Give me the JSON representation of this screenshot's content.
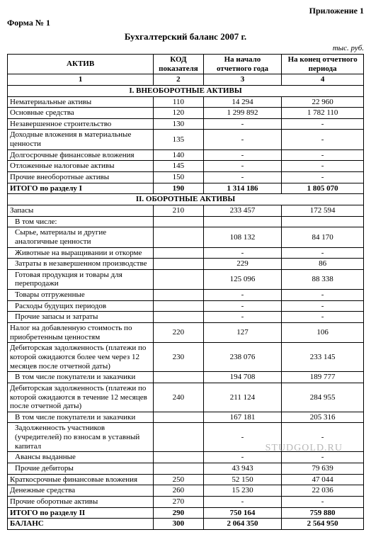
{
  "meta": {
    "appendix": "Приложение 1",
    "form": "Форма № 1",
    "title": "Бухгалтерский баланс 2007 г.",
    "units": "тыс. руб.",
    "watermark": "STUDGOLD.RU"
  },
  "table": {
    "headers": {
      "c1": "АКТИВ",
      "c2": "КОД показателя",
      "c3": "На начало отчетного года",
      "c4": "На конец отчетного периода"
    },
    "colnums": {
      "c1": "1",
      "c2": "2",
      "c3": "3",
      "c4": "4"
    },
    "section1": "I. ВНЕОБОРОТНЫЕ АКТИВЫ",
    "section2": "II. ОБОРОТНЫЕ АКТИВЫ",
    "rows1": [
      {
        "name": "Нематериальные активы",
        "code": "110",
        "v1": "14 294",
        "v2": "22 960"
      },
      {
        "name": "Основные средства",
        "code": "120",
        "v1": "1 299 892",
        "v2": "1 782 110"
      },
      {
        "name": "Незавершенное строительство",
        "code": "130",
        "v1": "-",
        "v2": "-"
      },
      {
        "name": "Доходные вложения в материальные ценности",
        "code": "135",
        "v1": "-",
        "v2": "-"
      },
      {
        "name": "Долгосрочные финансовые вложения",
        "code": "140",
        "v1": "-",
        "v2": "-"
      },
      {
        "name": "Отложенные налоговые активы",
        "code": "145",
        "v1": "-",
        "v2": "-"
      },
      {
        "name": "Прочие внеоборотные активы",
        "code": "150",
        "v1": "-",
        "v2": "-"
      },
      {
        "name": "ИТОГО по разделу I",
        "code": "190",
        "v1": "1 314 186",
        "v2": "1 805 070",
        "bold": true
      }
    ],
    "rows2": [
      {
        "name": "Запасы",
        "code": "210",
        "v1": "233 457",
        "v2": "172 594"
      },
      {
        "name": "В том числе:",
        "code": "",
        "v1": "",
        "v2": "",
        "indent": true
      },
      {
        "name": "Сырье, материалы и другие аналогичные ценности",
        "code": "",
        "v1": "108 132",
        "v2": "84 170",
        "indent": true
      },
      {
        "name": "Животные на выращивании и откорме",
        "code": "",
        "v1": "-",
        "v2": "-",
        "indent": true
      },
      {
        "name": "Затраты в незавершенном производстве",
        "code": "",
        "v1": "229",
        "v2": "86",
        "indent": true
      },
      {
        "name": "Готовая продукция и товары для перепродажи",
        "code": "",
        "v1": "125 096",
        "v2": "88 338",
        "indent": true
      },
      {
        "name": "Товары отгруженные",
        "code": "",
        "v1": "-",
        "v2": "-",
        "indent": true
      },
      {
        "name": "Расходы будущих периодов",
        "code": "",
        "v1": "-",
        "v2": "-",
        "indent": true
      },
      {
        "name": "Прочие запасы и затраты",
        "code": "",
        "v1": "-",
        "v2": "-",
        "indent": true
      },
      {
        "name": "Налог на добавленную стоимость по приобретенным ценностям",
        "code": "220",
        "v1": "127",
        "v2": "106"
      },
      {
        "name": "Дебиторская задолженность (платежи по которой ожидаются более чем через 12 месяцев после отчетной даты)",
        "code": "230",
        "v1": "238 076",
        "v2": "233 145"
      },
      {
        "name": "В том числе покупатели и заказчики",
        "code": "",
        "v1": "194 708",
        "v2": "189 777",
        "indent": true
      },
      {
        "name": "Дебиторская задолженность (платежи по которой ожидаются в течение 12 месяцев после отчетной даты)",
        "code": "240",
        "v1": "211 124",
        "v2": "284 955"
      },
      {
        "name": "В том числе покупатели и заказчики",
        "code": "",
        "v1": "167 181",
        "v2": "205 316",
        "indent": true
      },
      {
        "name": "Задолженность участников (учредителей) по взносам в уставный капитал",
        "code": "",
        "v1": "-",
        "v2": "-",
        "indent": true
      },
      {
        "name": "Авансы выданные",
        "code": "",
        "v1": "-",
        "v2": "-",
        "indent": true
      },
      {
        "name": "Прочие дебиторы",
        "code": "",
        "v1": "43 943",
        "v2": "79 639",
        "indent": true
      },
      {
        "name": "Краткосрочные финансовые вложения",
        "code": "250",
        "v1": "52 150",
        "v2": "47 044"
      },
      {
        "name": "Денежные средства",
        "code": "260",
        "v1": "15 230",
        "v2": "22 036"
      },
      {
        "name": "Прочие оборотные активы",
        "code": "270",
        "v1": "-",
        "v2": "-"
      },
      {
        "name": "ИТОГО по разделу II",
        "code": "290",
        "v1": "750 164",
        "v2": "759 880",
        "bold": true
      },
      {
        "name": "БАЛАНС",
        "code": "300",
        "v1": "2 064 350",
        "v2": "2 564 950",
        "bold": true
      }
    ]
  }
}
